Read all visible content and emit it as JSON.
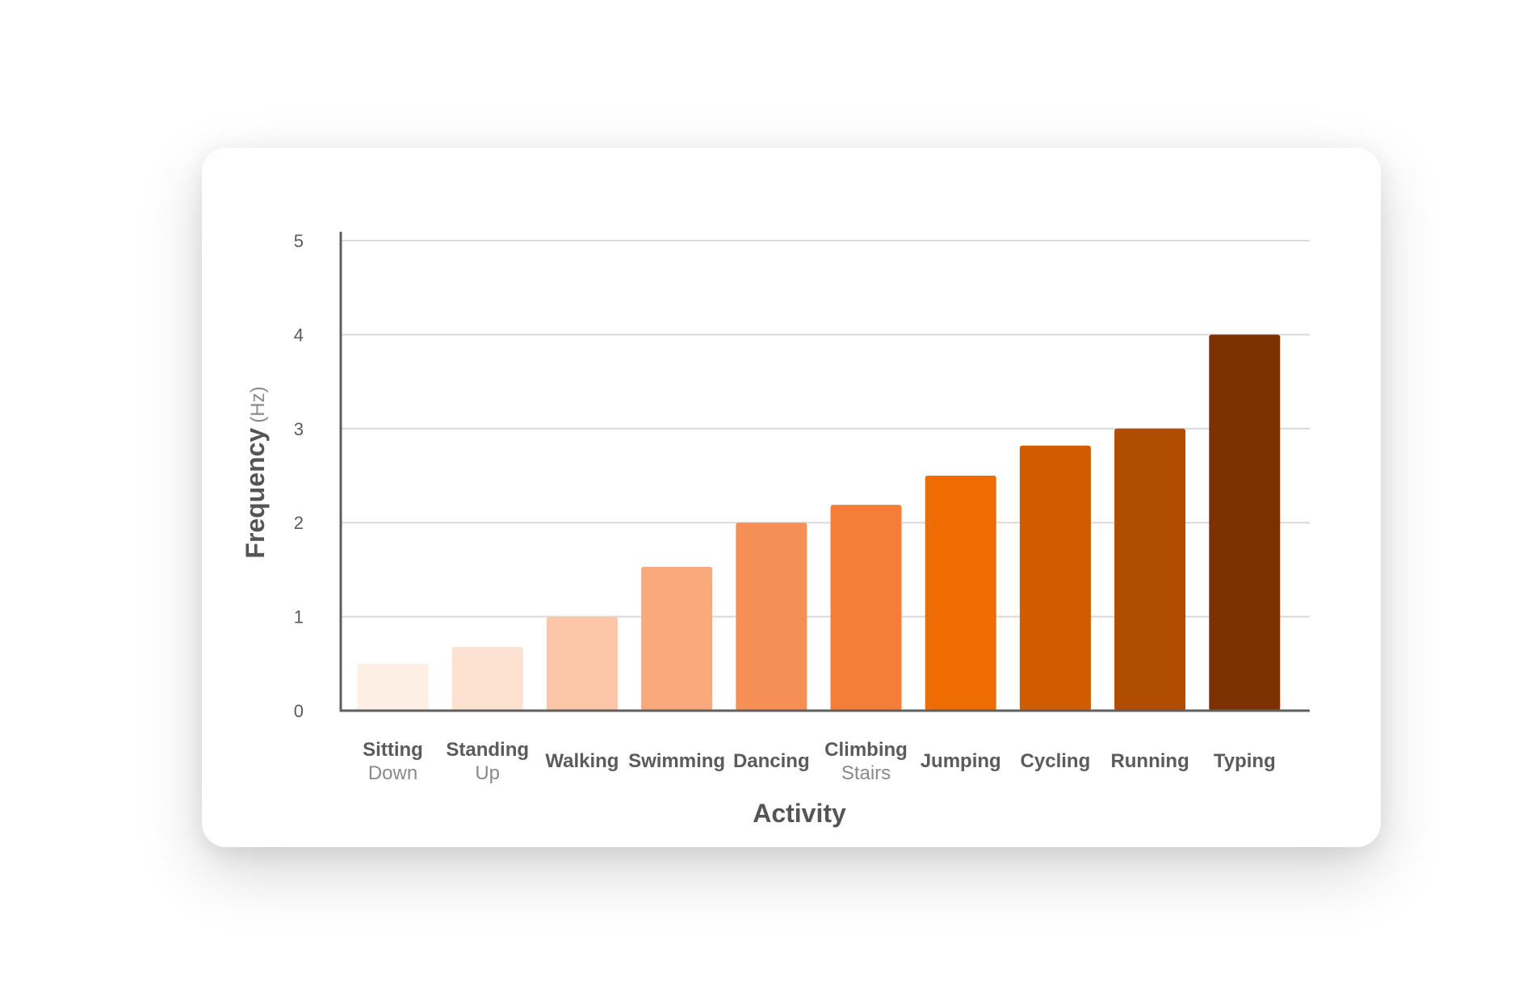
{
  "chart_data": {
    "type": "bar",
    "xlabel": "Activity",
    "ylabel": "Frequency",
    "ylabel_unit": "(Hz)",
    "ylim": [
      0,
      5
    ],
    "yticks": [
      0,
      1,
      2,
      3,
      4,
      5
    ],
    "grid": true,
    "categories": [
      {
        "name": "Sitting",
        "sub": "Down"
      },
      {
        "name": "Standing",
        "sub": "Up"
      },
      {
        "name": "Walking",
        "sub": ""
      },
      {
        "name": "Swimming",
        "sub": ""
      },
      {
        "name": "Dancing",
        "sub": ""
      },
      {
        "name": "Climbing",
        "sub": "Stairs"
      },
      {
        "name": "Jumping",
        "sub": ""
      },
      {
        "name": "Cycling",
        "sub": ""
      },
      {
        "name": "Running",
        "sub": ""
      },
      {
        "name": "Typing",
        "sub": ""
      }
    ],
    "values": [
      0.5,
      0.68,
      1.0,
      1.53,
      2.0,
      2.19,
      2.5,
      2.82,
      3.0,
      4.0
    ],
    "colors": [
      "#fdefe4",
      "#fde1d1",
      "#fdc6a8",
      "#faa97d",
      "#f58f55",
      "#f47e38",
      "#ee6c02",
      "#d15c00",
      "#b14d00",
      "#7c3200"
    ],
    "gridline_color": "#d9d9d9",
    "axis_color": "#5f5f5f"
  }
}
